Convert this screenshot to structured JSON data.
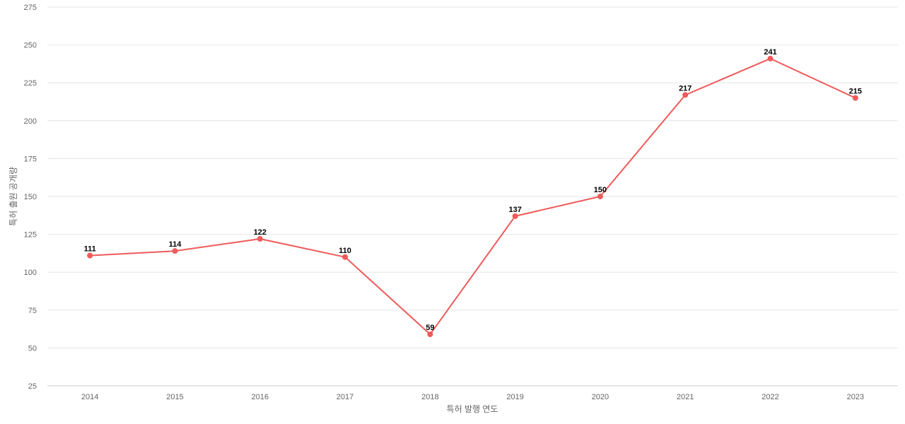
{
  "chart_data": {
    "type": "line",
    "title": "",
    "xlabel": "특허 발행 연도",
    "ylabel": "특허 출원 공개량",
    "categories": [
      "2014",
      "2015",
      "2016",
      "2017",
      "2018",
      "2019",
      "2020",
      "2021",
      "2022",
      "2023"
    ],
    "series": [
      {
        "values": [
          111,
          114,
          122,
          110,
          59,
          137,
          150,
          217,
          241,
          215
        ],
        "color": "#ef5a5a"
      }
    ],
    "ylim": [
      25,
      275
    ],
    "yticks": [
      25,
      50,
      75,
      100,
      125,
      150,
      175,
      200,
      225,
      250,
      275
    ],
    "grid": true,
    "legend": "none",
    "data_labels": true
  }
}
